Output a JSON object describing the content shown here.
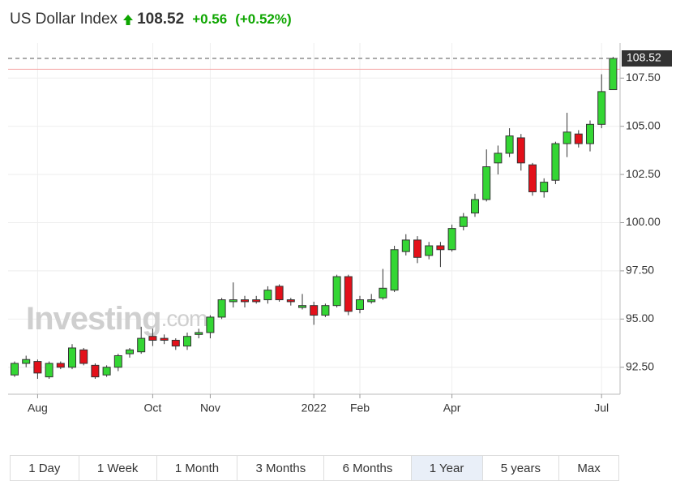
{
  "header": {
    "title": "US Dollar Index",
    "price": "108.52",
    "change": "+0.56",
    "change_percent": "(+0.52%)"
  },
  "watermark": {
    "brand": "Investing",
    "domain": ".com"
  },
  "chart_data": {
    "type": "candlestick",
    "categories": [
      null,
      null,
      "Aug",
      null,
      null,
      null,
      null,
      null,
      null,
      null,
      null,
      null,
      "Oct",
      null,
      null,
      null,
      null,
      "Nov",
      null,
      null,
      null,
      null,
      null,
      null,
      null,
      null,
      "2022",
      null,
      null,
      null,
      "Feb",
      null,
      null,
      null,
      null,
      null,
      null,
      null,
      "Apr",
      null,
      null,
      null,
      null,
      null,
      null,
      null,
      null,
      null,
      null,
      null,
      null,
      "Jul",
      null
    ],
    "open": [
      92.1,
      92.7,
      92.8,
      92.0,
      92.7,
      92.5,
      93.4,
      92.6,
      92.1,
      92.5,
      93.2,
      93.3,
      94.1,
      94.0,
      93.9,
      93.6,
      94.2,
      94.3,
      95.1,
      95.9,
      96.0,
      96.0,
      96.0,
      96.7,
      96.0,
      95.6,
      95.7,
      95.2,
      95.7,
      97.2,
      95.5,
      95.9,
      96.1,
      96.5,
      98.5,
      99.1,
      98.3,
      98.8,
      98.6,
      99.8,
      100.5,
      101.2,
      103.1,
      103.6,
      104.4,
      103.0,
      101.6,
      102.2,
      104.1,
      104.6,
      104.1,
      105.1,
      106.9
    ],
    "high": [
      92.8,
      93.1,
      92.9,
      92.8,
      92.8,
      93.7,
      93.5,
      92.7,
      92.6,
      93.2,
      93.5,
      94.6,
      94.5,
      94.2,
      94.0,
      94.3,
      94.5,
      95.2,
      96.1,
      96.9,
      96.2,
      96.2,
      96.7,
      96.8,
      96.1,
      96.3,
      95.9,
      95.8,
      97.3,
      97.3,
      96.2,
      96.3,
      97.6,
      98.8,
      99.4,
      99.3,
      99.0,
      99.0,
      99.9,
      100.5,
      101.5,
      103.8,
      104.0,
      104.9,
      104.6,
      103.1,
      102.3,
      104.2,
      105.7,
      104.8,
      105.3,
      107.7,
      108.6
    ],
    "low": [
      92.0,
      92.5,
      91.9,
      91.9,
      92.4,
      92.4,
      92.6,
      91.9,
      92.0,
      92.3,
      93.0,
      93.2,
      93.6,
      93.7,
      93.4,
      93.4,
      94.0,
      94.0,
      95.0,
      95.6,
      95.6,
      95.8,
      95.8,
      95.9,
      95.7,
      95.5,
      94.7,
      95.1,
      95.6,
      95.2,
      95.3,
      95.8,
      96.0,
      96.4,
      98.3,
      97.9,
      98.1,
      97.7,
      98.5,
      99.6,
      100.3,
      101.1,
      102.5,
      103.4,
      102.7,
      101.4,
      101.3,
      102.0,
      103.4,
      103.9,
      103.7,
      104.9,
      106.9
    ],
    "close": [
      92.7,
      92.9,
      92.2,
      92.7,
      92.5,
      93.5,
      92.7,
      92.0,
      92.5,
      93.1,
      93.4,
      94.0,
      93.9,
      93.9,
      93.6,
      94.1,
      94.3,
      95.1,
      96.0,
      96.0,
      95.9,
      95.9,
      96.5,
      96.0,
      95.9,
      95.7,
      95.2,
      95.7,
      97.2,
      95.4,
      96.0,
      96.0,
      96.6,
      98.6,
      99.1,
      98.2,
      98.8,
      98.6,
      99.7,
      100.3,
      101.2,
      102.9,
      103.6,
      104.5,
      103.1,
      101.6,
      102.1,
      104.1,
      104.7,
      104.1,
      105.1,
      106.8,
      108.52
    ],
    "up_color": "#34d634",
    "down_color": "#e3101a",
    "previous_close": 107.96,
    "previous_close_color": "#f4a6a6",
    "ylim": [
      91.1,
      108.9
    ],
    "yticks": [
      {
        "value": 92.5,
        "label": "92.50"
      },
      {
        "value": 95,
        "label": "95.00"
      },
      {
        "value": 97.5,
        "label": "97.50"
      },
      {
        "value": 100,
        "label": "100.00"
      },
      {
        "value": 102.5,
        "label": "102.50"
      },
      {
        "value": 105,
        "label": "105.00"
      },
      {
        "value": 107.5,
        "label": "107.50"
      }
    ],
    "grid": true
  },
  "range_buttons": {
    "items": [
      "1 Day",
      "1 Week",
      "1 Month",
      "3 Months",
      "6 Months",
      "1 Year",
      "5 years",
      "Max"
    ],
    "selected": "1 Year"
  }
}
